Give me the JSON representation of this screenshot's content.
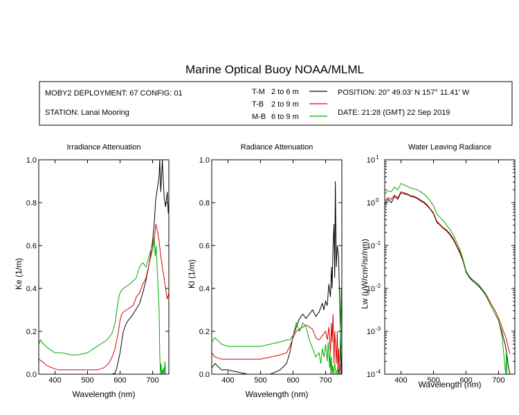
{
  "title": "Marine Optical Buoy NOAA/MLML",
  "info": {
    "deployment": "MOBY2 DEPLOYMENT: 67 CONFIG: 01",
    "station": "STATION: Lanai Mooring",
    "position": "POSITION: 20° 49.03' N   157° 11.41' W",
    "date": "DATE: 21:28 (GMT) 22 Sep 2019",
    "legend": [
      {
        "label": "T-M",
        "depth": "2 to 6  m",
        "color": "#000000"
      },
      {
        "label": "T-B",
        "depth": "2 to 9  m",
        "color": "#dd0000"
      },
      {
        "label": "M-B",
        "depth": "6 to 9  m",
        "color": "#00aa00"
      }
    ]
  },
  "chart_data": [
    {
      "type": "line",
      "title": "Irradiance Attenuation",
      "xlabel": "Wavelength (nm)",
      "ylabel": "Ke  (1/m)",
      "xlim": [
        350,
        750
      ],
      "ylim": [
        0,
        1.0
      ],
      "yscale": "linear",
      "xticks": [
        400,
        500,
        600,
        700
      ],
      "yticks": [
        0.0,
        0.2,
        0.4,
        0.6,
        0.8,
        1.0
      ],
      "ytick_labels": [
        "0.0",
        "0.2",
        "0.4",
        "0.6",
        "0.8",
        "1.0"
      ],
      "series": [
        {
          "name": "T-M",
          "color": "#000000",
          "x": [
            350,
            380,
            420,
            450,
            480,
            500,
            520,
            545,
            560,
            575,
            585,
            590,
            600,
            610,
            620,
            640,
            660,
            670,
            680,
            690,
            700,
            705,
            710,
            720,
            722,
            725,
            730,
            733,
            736,
            740,
            745,
            748,
            750
          ],
          "y": [
            0.0,
            0.0,
            0.0,
            0.0,
            0.0,
            0.0,
            0.0,
            0.0,
            0.0,
            0.0,
            0.005,
            0.03,
            0.1,
            0.2,
            0.24,
            0.28,
            0.33,
            0.38,
            0.44,
            0.52,
            0.62,
            0.7,
            0.82,
            0.92,
            1.0,
            0.85,
            1.0,
            0.9,
            0.82,
            0.78,
            0.85,
            0.75,
            0.8
          ]
        },
        {
          "name": "T-B",
          "color": "#dd0000",
          "x": [
            350,
            360,
            375,
            390,
            410,
            430,
            450,
            470,
            500,
            530,
            550,
            565,
            575,
            585,
            590,
            595,
            600,
            605,
            610,
            620,
            640,
            650,
            660,
            670,
            680,
            690,
            700,
            705,
            710,
            715,
            720,
            725,
            730,
            735,
            740,
            745,
            750
          ],
          "y": [
            0.07,
            0.06,
            0.04,
            0.03,
            0.02,
            0.02,
            0.02,
            0.02,
            0.02,
            0.02,
            0.03,
            0.05,
            0.08,
            0.12,
            0.16,
            0.2,
            0.25,
            0.28,
            0.29,
            0.3,
            0.32,
            0.36,
            0.38,
            0.42,
            0.45,
            0.52,
            0.58,
            0.62,
            0.7,
            0.67,
            0.62,
            0.55,
            0.5,
            0.45,
            0.4,
            0.35,
            0.38
          ]
        },
        {
          "name": "M-B",
          "color": "#00aa00",
          "x": [
            350,
            355,
            365,
            380,
            400,
            420,
            450,
            470,
            500,
            520,
            540,
            560,
            575,
            585,
            590,
            595,
            600,
            605,
            610,
            630,
            650,
            660,
            670,
            680,
            690,
            700,
            705,
            708,
            711,
            714,
            717,
            720,
            722,
            724,
            726,
            728,
            730,
            732,
            734,
            736,
            738,
            740
          ],
          "y": [
            0.14,
            0.16,
            0.14,
            0.12,
            0.1,
            0.1,
            0.09,
            0.09,
            0.1,
            0.12,
            0.14,
            0.16,
            0.19,
            0.24,
            0.3,
            0.35,
            0.38,
            0.39,
            0.4,
            0.42,
            0.45,
            0.5,
            0.52,
            0.5,
            0.56,
            0.6,
            0.64,
            0.55,
            0.6,
            0.5,
            0.4,
            0.3,
            0.1,
            0.0,
            0.05,
            0.0,
            0.02,
            0.0,
            0.03,
            0.0,
            0.06,
            0.0
          ]
        }
      ]
    },
    {
      "type": "line",
      "title": "Radiance Attenuation",
      "xlabel": "Wavelength (nm)",
      "ylabel": "Kl  (1/m)",
      "xlim": [
        350,
        750
      ],
      "ylim": [
        0,
        1.0
      ],
      "yscale": "linear",
      "xticks": [
        400,
        500,
        600,
        700
      ],
      "yticks": [
        0.0,
        0.2,
        0.4,
        0.6,
        0.8,
        1.0
      ],
      "ytick_labels": [
        "0.0",
        "0.2",
        "0.4",
        "0.6",
        "0.8",
        "1.0"
      ],
      "series": [
        {
          "name": "T-M",
          "color": "#000000",
          "x": [
            350,
            360,
            380,
            400,
            430,
            460,
            500,
            530,
            560,
            580,
            590,
            600,
            610,
            620,
            630,
            640,
            650,
            660,
            670,
            680,
            690,
            695,
            700,
            705,
            710,
            715,
            718,
            720,
            723,
            726,
            728,
            730,
            733,
            736,
            740,
            744,
            748,
            750
          ],
          "y": [
            0.03,
            0.05,
            0.02,
            0.02,
            0.01,
            0.0,
            0.0,
            0.0,
            0.02,
            0.05,
            0.1,
            0.18,
            0.22,
            0.26,
            0.28,
            0.26,
            0.28,
            0.3,
            0.27,
            0.29,
            0.33,
            0.3,
            0.34,
            0.32,
            0.42,
            0.36,
            0.5,
            0.4,
            0.6,
            0.7,
            0.45,
            0.9,
            0.5,
            0.6,
            0.55,
            0.3,
            0.0,
            0.1
          ]
        },
        {
          "name": "T-B",
          "color": "#dd0000",
          "x": [
            350,
            360,
            380,
            400,
            430,
            460,
            500,
            530,
            560,
            580,
            590,
            600,
            610,
            620,
            630,
            640,
            650,
            660,
            670,
            680,
            690,
            700,
            705,
            710,
            715,
            718,
            720,
            723,
            726,
            728,
            730,
            733,
            736,
            738,
            740,
            743,
            746,
            750
          ],
          "y": [
            0.1,
            0.08,
            0.07,
            0.07,
            0.07,
            0.07,
            0.07,
            0.08,
            0.09,
            0.1,
            0.13,
            0.17,
            0.2,
            0.21,
            0.22,
            0.23,
            0.22,
            0.21,
            0.17,
            0.16,
            0.18,
            0.2,
            0.16,
            0.22,
            0.1,
            0.24,
            0.15,
            0.28,
            0.05,
            0.2,
            0.15,
            0.05,
            0.2,
            0.0,
            0.12,
            0.0,
            0.05,
            0.02
          ]
        },
        {
          "name": "M-B",
          "color": "#00aa00",
          "x": [
            350,
            360,
            380,
            400,
            430,
            460,
            500,
            530,
            560,
            580,
            590,
            600,
            610,
            620,
            630,
            640,
            650,
            660,
            670,
            680,
            685,
            690,
            695,
            700,
            705,
            708,
            710,
            712,
            714,
            716,
            718,
            720,
            722,
            725,
            728,
            732,
            736,
            740,
            744,
            748,
            750
          ],
          "y": [
            0.15,
            0.17,
            0.14,
            0.13,
            0.13,
            0.13,
            0.13,
            0.14,
            0.15,
            0.16,
            0.16,
            0.18,
            0.24,
            0.2,
            0.24,
            0.22,
            0.16,
            0.12,
            0.08,
            0.1,
            0.05,
            0.12,
            0.08,
            0.14,
            0.06,
            0.15,
            0.1,
            0.03,
            0.1,
            0.0,
            0.08,
            0.0,
            0.04,
            0.0,
            0.05,
            0.0,
            0.02,
            0.0,
            0.08,
            0.4,
            0.1
          ]
        }
      ]
    },
    {
      "type": "line",
      "title": "Water Leaving Radiance",
      "xlabel": "Wavelength (nm)",
      "ylabel": "Lw  (μW/cm²/sr/nm)",
      "xlim": [
        350,
        750
      ],
      "ylim": [
        0.0001,
        10
      ],
      "yscale": "log",
      "xticks": [
        400,
        500,
        600,
        700
      ],
      "yticks": [
        0.0001,
        0.001,
        0.01,
        0.1,
        1,
        10
      ],
      "ytick_labels": [
        {
          "base": "10",
          "exp": "-4"
        },
        {
          "base": "10",
          "exp": "-3"
        },
        {
          "base": "10",
          "exp": "-2"
        },
        {
          "base": "10",
          "exp": "-1"
        },
        {
          "base": "10",
          "exp": "0"
        },
        {
          "base": "10",
          "exp": "1"
        }
      ],
      "series": [
        {
          "name": "T-M",
          "color": "#000000",
          "x": [
            350,
            360,
            370,
            380,
            390,
            400,
            410,
            420,
            430,
            440,
            450,
            460,
            470,
            480,
            490,
            500,
            510,
            520,
            530,
            540,
            550,
            560,
            570,
            580,
            590,
            600,
            610,
            620,
            630,
            640,
            650,
            660,
            670,
            680,
            690,
            700,
            705,
            710,
            715,
            720,
            725,
            730,
            735
          ],
          "y": [
            0.9,
            1.2,
            1.0,
            1.4,
            1.2,
            1.7,
            1.6,
            1.55,
            1.4,
            1.35,
            1.25,
            1.1,
            1.0,
            0.85,
            0.7,
            0.55,
            0.35,
            0.3,
            0.25,
            0.22,
            0.18,
            0.14,
            0.1,
            0.07,
            0.045,
            0.024,
            0.018,
            0.015,
            0.013,
            0.011,
            0.009,
            0.007,
            0.005,
            0.0035,
            0.0025,
            0.0018,
            0.0013,
            0.001,
            0.0007,
            0.0005,
            0.0003,
            0.00015,
            0.0001
          ]
        },
        {
          "name": "T-B",
          "color": "#dd0000",
          "x": [
            350,
            360,
            370,
            380,
            390,
            400,
            410,
            420,
            430,
            440,
            450,
            460,
            470,
            480,
            490,
            500,
            510,
            520,
            530,
            540,
            550,
            560,
            570,
            580,
            590,
            600,
            610,
            620,
            630,
            640,
            650,
            660,
            670,
            680,
            690,
            700,
            705,
            710,
            715,
            720,
            725,
            730,
            735
          ],
          "y": [
            1.1,
            1.3,
            1.2,
            1.5,
            1.3,
            1.8,
            1.7,
            1.6,
            1.45,
            1.4,
            1.3,
            1.15,
            1.05,
            0.9,
            0.72,
            0.58,
            0.37,
            0.31,
            0.26,
            0.23,
            0.19,
            0.15,
            0.105,
            0.075,
            0.048,
            0.025,
            0.019,
            0.016,
            0.014,
            0.012,
            0.0095,
            0.0075,
            0.0055,
            0.004,
            0.003,
            0.002,
            0.0016,
            0.0013,
            0.001,
            0.0008,
            0.0006,
            0.0004,
            0.0003
          ]
        },
        {
          "name": "M-B",
          "color": "#00aa00",
          "x": [
            350,
            360,
            370,
            380,
            390,
            400,
            410,
            420,
            430,
            440,
            450,
            460,
            470,
            480,
            490,
            500,
            510,
            520,
            530,
            540,
            550,
            560,
            570,
            580,
            590,
            600,
            610,
            620,
            630,
            640,
            650,
            660,
            670,
            680,
            690,
            700,
            705,
            710,
            713,
            716,
            718,
            720,
            722,
            724,
            726
          ],
          "y": [
            1.6,
            1.9,
            1.8,
            2.3,
            2.0,
            2.8,
            2.6,
            2.4,
            2.2,
            2.1,
            2.0,
            1.8,
            1.6,
            1.35,
            1.1,
            0.85,
            0.55,
            0.45,
            0.38,
            0.3,
            0.24,
            0.18,
            0.125,
            0.085,
            0.05,
            0.026,
            0.019,
            0.016,
            0.014,
            0.012,
            0.0095,
            0.0072,
            0.005,
            0.0035,
            0.0025,
            0.0018,
            0.0012,
            0.0008,
            0.0005,
            0.0003,
            0.0002,
            0.00013,
            0.0001,
            0.0003,
            0.0001
          ]
        }
      ]
    }
  ]
}
